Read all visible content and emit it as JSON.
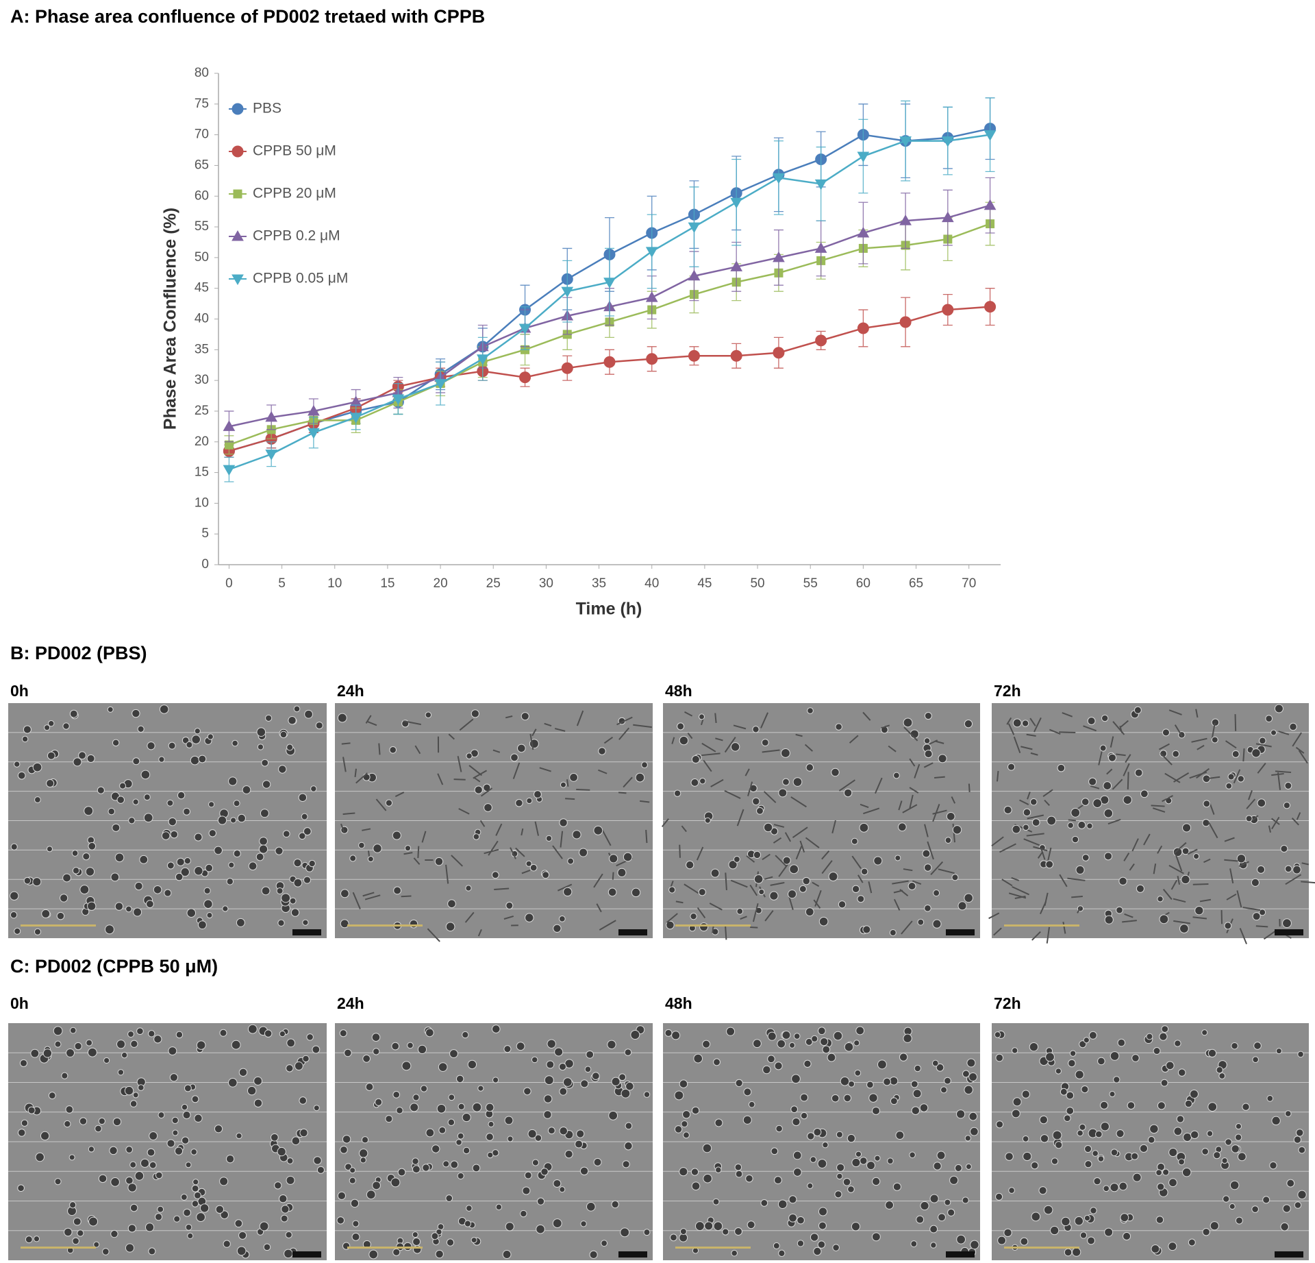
{
  "chart_data": {
    "type": "line",
    "title": "A: Phase area confluence of PD002 tretaed with CPPB",
    "x_label": "Time (h)",
    "y_label": "Phase Area Confluence (%)",
    "x": [
      0,
      4,
      8,
      12,
      16,
      20,
      24,
      28,
      32,
      36,
      40,
      44,
      48,
      52,
      56,
      60,
      64,
      68,
      72
    ],
    "xlim": [
      -1,
      73
    ],
    "xticks": [
      0,
      5,
      10,
      15,
      20,
      25,
      30,
      35,
      40,
      45,
      50,
      55,
      60,
      65,
      70
    ],
    "ylim": [
      0,
      80
    ],
    "yticks": [
      0,
      5,
      10,
      15,
      20,
      25,
      30,
      35,
      40,
      45,
      50,
      55,
      60,
      65,
      70,
      75,
      80
    ],
    "grid": false,
    "legend": "upper left",
    "series": [
      {
        "name": "PBS",
        "color": "#4a7ebb",
        "marker": "circle",
        "values": [
          18.5,
          20.5,
          23,
          25,
          26.5,
          31,
          35.5,
          41.5,
          46.5,
          50.5,
          54,
          57,
          60.5,
          63.5,
          66,
          70,
          69,
          69.5,
          71
        ],
        "errors": [
          1,
          1.5,
          1.5,
          2,
          2,
          2.5,
          3,
          4,
          5,
          6,
          6,
          5.5,
          6,
          6,
          4.5,
          5,
          6,
          5,
          5
        ]
      },
      {
        "name": "CPPB 50 μM",
        "color": "#c0504d",
        "marker": "circle",
        "values": [
          18.5,
          20.5,
          23,
          25.5,
          29,
          30.5,
          31.5,
          30.5,
          32,
          33,
          33.5,
          34,
          34,
          34.5,
          36.5,
          38.5,
          39.5,
          41.5,
          42
        ],
        "errors": [
          1,
          1.5,
          1.5,
          1.5,
          1,
          1.5,
          1.5,
          1.5,
          2,
          2,
          2,
          1.5,
          2,
          2.5,
          1.5,
          3,
          4,
          2.5,
          3
        ]
      },
      {
        "name": "CPPB 20 μM",
        "color": "#9bbb59",
        "marker": "square",
        "values": [
          19.5,
          22,
          23.5,
          23.5,
          26.5,
          29.5,
          33,
          35,
          37.5,
          39.5,
          41.5,
          44,
          46,
          47.5,
          49.5,
          51.5,
          52,
          53,
          55.5
        ],
        "errors": [
          1.5,
          1.5,
          1.5,
          2,
          2,
          2,
          2.5,
          2.5,
          2.5,
          2.5,
          3,
          3,
          3,
          3,
          3,
          3,
          4,
          3.5,
          3.5
        ]
      },
      {
        "name": "CPPB 0.2 μM",
        "color": "#8064a2",
        "marker": "triangle-up",
        "values": [
          22.5,
          24,
          25,
          26.5,
          28,
          30.5,
          35.5,
          38.5,
          40.5,
          42,
          43.5,
          47,
          48.5,
          50,
          51.5,
          54,
          56,
          56.5,
          58.5
        ],
        "errors": [
          2.5,
          2,
          2,
          2,
          2.5,
          2.5,
          3.5,
          3,
          3,
          3,
          3.5,
          4,
          4,
          4.5,
          4.5,
          5,
          4.5,
          4.5,
          4.5
        ]
      },
      {
        "name": "CPPB 0.05 μM",
        "color": "#4bacc6",
        "marker": "triangle-down",
        "values": [
          15.5,
          18,
          21.5,
          24,
          27,
          29.5,
          33.5,
          38.5,
          44.5,
          46,
          51,
          55,
          59,
          63,
          62,
          66.5,
          69,
          69,
          70
        ],
        "errors": [
          2,
          2,
          2.5,
          2,
          2.5,
          3.5,
          3.5,
          3.5,
          5,
          5.5,
          6,
          6.5,
          7,
          6,
          6,
          6,
          6.5,
          5.5,
          6
        ]
      }
    ]
  },
  "panels": [
    {
      "title": "B: PD002 (PBS)",
      "times": [
        "0h",
        "24h",
        "48h",
        "72h"
      ]
    },
    {
      "title": "C: PD002 (CPPB 50 μM)",
      "times": [
        "0h",
        "24h",
        "48h",
        "72h"
      ]
    }
  ]
}
